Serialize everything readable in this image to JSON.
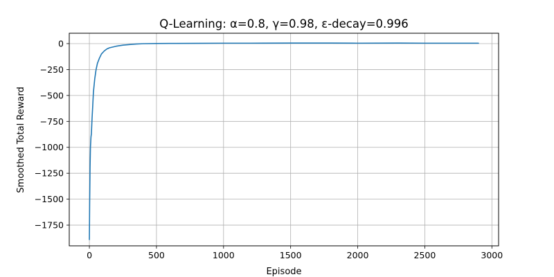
{
  "chart_data": {
    "type": "line",
    "title": "Q-Learning: α=0.8, γ=0.98, ε-decay=0.996",
    "xlabel": "Episode",
    "ylabel": "Smoothed Total Reward",
    "xlim": [
      -150,
      3050
    ],
    "ylim": [
      -1950,
      100
    ],
    "xticks": [
      0,
      500,
      1000,
      1500,
      2000,
      2500,
      3000
    ],
    "yticks": [
      0,
      -250,
      -500,
      -750,
      -1000,
      -1250,
      -1500,
      -1750
    ],
    "xtick_labels": [
      "0",
      "500",
      "1000",
      "1500",
      "2000",
      "2500",
      "3000"
    ],
    "ytick_labels": [
      "0",
      "−250",
      "−500",
      "−750",
      "−1000",
      "−1250",
      "−1500",
      "−1750"
    ],
    "grid": true,
    "legend": "none",
    "line_color": "#1f77b4",
    "series": [
      {
        "x": [
          0,
          2,
          5,
          8,
          12,
          15,
          20,
          25,
          30,
          40,
          50,
          60,
          75,
          90,
          110,
          130,
          150,
          200,
          250,
          300,
          350,
          400,
          500,
          600,
          800,
          1000,
          1200,
          1500,
          1800,
          2000,
          2300,
          2500,
          2700,
          2900
        ],
        "values": [
          -1890,
          -1550,
          -1200,
          -1000,
          -900,
          -870,
          -720,
          -600,
          -470,
          -340,
          -250,
          -190,
          -140,
          -100,
          -72,
          -52,
          -40,
          -25,
          -15,
          -9,
          -4,
          -1,
          1,
          2,
          3,
          4,
          4,
          5,
          5,
          4,
          5,
          4,
          4,
          4
        ]
      }
    ]
  }
}
